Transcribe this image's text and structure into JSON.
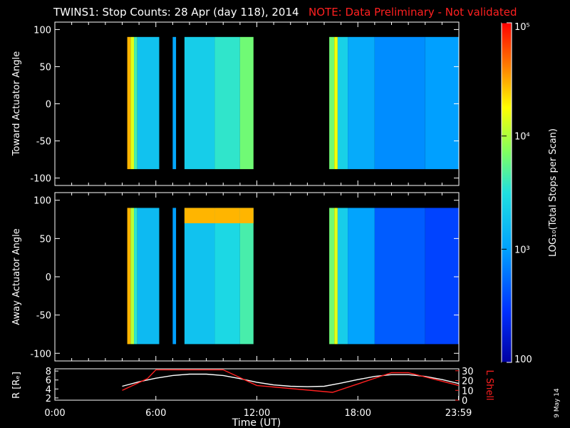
{
  "title": {
    "main": "TWINS1: Stop Counts: 28 Apr (day 118), 2014",
    "note": "NOTE: Data Preliminary - Not validated"
  },
  "side_date": "9 May 14",
  "colors": {
    "background": "#000000",
    "axis": "#ffffff",
    "note": "#ff2020",
    "r_line": "#ffffff",
    "l_line": "#ff2020"
  },
  "chart_data": [
    {
      "type": "heatmap",
      "ylabel": "Toward Actuator Angle",
      "ylim": [
        -110,
        110
      ],
      "yticks": [
        100,
        50,
        0,
        -50,
        -100
      ],
      "xlim": [
        0,
        24
      ],
      "data_y_range": [
        -88,
        90
      ],
      "colorscale": "rainbow log",
      "columns": [
        {
          "t0": 4.3,
          "t1": 4.5,
          "level": 0.82
        },
        {
          "t0": 4.5,
          "t1": 4.7,
          "level": 0.72
        },
        {
          "t0": 4.7,
          "t1": 4.9,
          "level": 0.55
        },
        {
          "t0": 4.9,
          "t1": 6.2,
          "level": 0.42
        },
        {
          "t0": 7.0,
          "t1": 7.2,
          "level": 0.35
        },
        {
          "t0": 7.7,
          "t1": 9.5,
          "level": 0.45
        },
        {
          "t0": 9.5,
          "t1": 11.0,
          "level": 0.52
        },
        {
          "t0": 11.0,
          "t1": 11.8,
          "level": 0.6
        },
        {
          "t0": 16.3,
          "t1": 16.6,
          "level": 0.6
        },
        {
          "t0": 16.6,
          "t1": 16.8,
          "level": 0.74
        },
        {
          "t0": 16.8,
          "t1": 17.4,
          "level": 0.46
        },
        {
          "t0": 17.4,
          "t1": 19.0,
          "level": 0.36
        },
        {
          "t0": 19.0,
          "t1": 22.0,
          "level": 0.3
        },
        {
          "t0": 22.0,
          "t1": 24.0,
          "level": 0.33
        }
      ]
    },
    {
      "type": "heatmap",
      "ylabel": "Away Actuator Angle",
      "ylim": [
        -110,
        110
      ],
      "yticks": [
        100,
        50,
        0,
        -50,
        -100
      ],
      "xlim": [
        0,
        24
      ],
      "data_y_range": [
        -88,
        90
      ],
      "colorscale": "rainbow log",
      "columns": [
        {
          "t0": 4.3,
          "t1": 4.5,
          "level": 0.82
        },
        {
          "t0": 4.5,
          "t1": 4.7,
          "level": 0.68
        },
        {
          "t0": 4.7,
          "t1": 4.9,
          "level": 0.52
        },
        {
          "t0": 4.9,
          "t1": 6.2,
          "level": 0.4
        },
        {
          "t0": 7.0,
          "t1": 7.2,
          "level": 0.33
        },
        {
          "t0": 7.7,
          "t1": 9.5,
          "level": 0.42
        },
        {
          "t0": 9.5,
          "t1": 11.0,
          "level": 0.48
        },
        {
          "t0": 11.0,
          "t1": 11.8,
          "level": 0.55
        },
        {
          "t0": 16.3,
          "t1": 16.6,
          "level": 0.6
        },
        {
          "t0": 16.6,
          "t1": 16.8,
          "level": 0.72
        },
        {
          "t0": 16.8,
          "t1": 17.4,
          "level": 0.45
        },
        {
          "t0": 17.4,
          "t1": 19.0,
          "level": 0.34
        },
        {
          "t0": 19.0,
          "t1": 22.0,
          "level": 0.22
        },
        {
          "t0": 22.0,
          "t1": 24.0,
          "level": 0.18
        }
      ],
      "top_band": {
        "y0": 70,
        "y1": 90,
        "level": 0.82
      }
    },
    {
      "type": "colorbar",
      "label": "LOG₁₀(Total Stops per Scan)",
      "range": [
        100,
        100000
      ],
      "ticks": [
        "10⁵",
        "10⁴",
        "10³",
        "100"
      ],
      "tick_values": [
        100000,
        10000,
        1000,
        100
      ]
    },
    {
      "type": "line",
      "xlabel": "Time (UT)",
      "ylabel": "R [Rₑ]",
      "ylabel2": "L Shell",
      "xlim": [
        0,
        24
      ],
      "ylim": [
        1.5,
        8.5
      ],
      "y2lim": [
        0,
        32
      ],
      "xticks": [
        "0:00",
        "6:00",
        "12:00",
        "18:00",
        "23:59"
      ],
      "xtick_values": [
        0,
        6,
        12,
        18,
        23.98
      ],
      "yticks": [
        8,
        6,
        4,
        2
      ],
      "y2ticks": [
        30,
        20,
        10,
        0
      ],
      "series": [
        {
          "name": "R",
          "x": [
            4.0,
            5.0,
            6.0,
            7.0,
            8.0,
            9.0,
            10.0,
            11.0,
            12.0,
            13.0,
            14.0,
            15.0,
            16.0,
            17.0,
            18.0,
            19.0,
            20.0,
            21.0,
            22.0,
            23.0,
            24.0
          ],
          "values": [
            4.6,
            5.6,
            6.4,
            7.0,
            7.3,
            7.3,
            7.0,
            6.3,
            5.5,
            4.9,
            4.6,
            4.5,
            4.6,
            5.3,
            6.1,
            6.8,
            7.2,
            7.2,
            6.8,
            6.1,
            5.2
          ]
        },
        {
          "name": "L Shell",
          "axis": "right",
          "x": [
            4.0,
            5.5,
            6.0,
            10.0,
            12.0,
            16.5,
            20.0,
            21.0,
            24.0
          ],
          "values": [
            10,
            22,
            31,
            31,
            15,
            8,
            28,
            28,
            15
          ]
        }
      ]
    }
  ]
}
